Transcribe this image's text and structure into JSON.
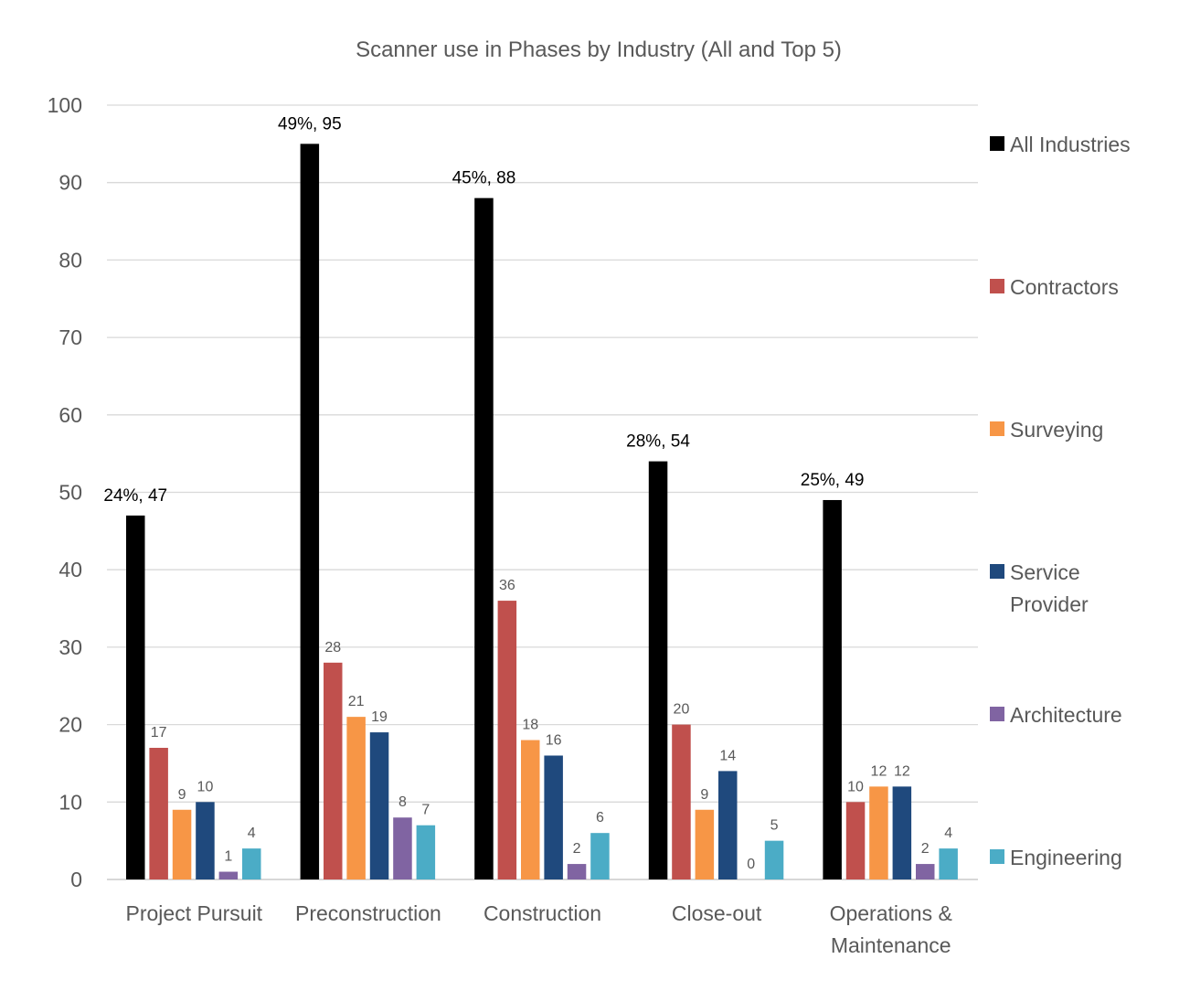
{
  "chart_data": {
    "type": "bar",
    "title": "Scanner use in Phases by Industry (All and Top 5)",
    "xlabel": "",
    "ylabel": "",
    "ylim": [
      0,
      100
    ],
    "yticks": [
      "0",
      "10",
      "20",
      "30",
      "40",
      "50",
      "60",
      "70",
      "80",
      "90",
      "100"
    ],
    "grid": true,
    "legend_position": "right",
    "categories": [
      [
        "Project Pursuit"
      ],
      [
        "Preconstruction"
      ],
      [
        "Construction"
      ],
      [
        "Close-out"
      ],
      [
        "Operations &",
        "Maintenance"
      ]
    ],
    "series": [
      {
        "name": [
          "All Industries"
        ],
        "color": "#000000",
        "values": [
          47,
          95,
          88,
          54,
          49
        ],
        "labels": [
          "24%, 47",
          "49%, 95",
          "45%, 88",
          "28%, 54",
          "25%, 49"
        ]
      },
      {
        "name": [
          "Contractors"
        ],
        "color": "#C0504D",
        "values": [
          17,
          28,
          36,
          20,
          10
        ],
        "labels": [
          "17",
          "28",
          "36",
          "20",
          "10"
        ]
      },
      {
        "name": [
          "Surveying"
        ],
        "color": "#F79646",
        "values": [
          9,
          21,
          18,
          9,
          12
        ],
        "labels": [
          "9",
          "21",
          "18",
          "9",
          "12"
        ]
      },
      {
        "name": [
          "Service",
          "Provider"
        ],
        "color": "#1F497D",
        "values": [
          10,
          19,
          16,
          14,
          12
        ],
        "labels": [
          "10",
          "19",
          "16",
          "14",
          "12"
        ]
      },
      {
        "name": [
          "Architecture"
        ],
        "color": "#8064A2",
        "values": [
          1,
          8,
          2,
          0,
          2
        ],
        "labels": [
          "1",
          "8",
          "2",
          "0",
          "2"
        ]
      },
      {
        "name": [
          "Engineering"
        ],
        "color": "#4BACC6",
        "values": [
          4,
          7,
          6,
          5,
          4
        ],
        "labels": [
          "4",
          "7",
          "6",
          "5",
          "4"
        ]
      }
    ]
  }
}
